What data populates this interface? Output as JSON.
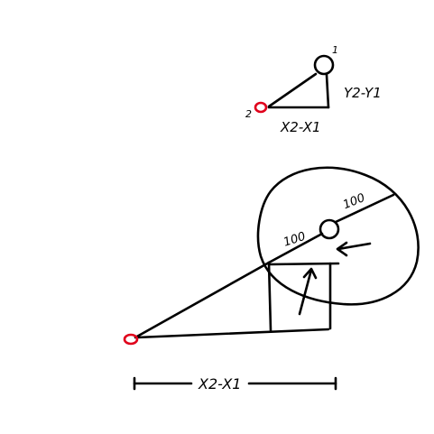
{
  "small_triangle": {
    "point1_label": "1",
    "point2_label": "2",
    "dx_label": "X2-X1",
    "dy_label": "Y2-Y1"
  },
  "large_diagram": {
    "radius_outer_label": "100",
    "radius_inner_label": "100",
    "dx_label": "X2-X1"
  },
  "colors": {
    "ink": "#000000",
    "start_point": "#e0001b"
  }
}
